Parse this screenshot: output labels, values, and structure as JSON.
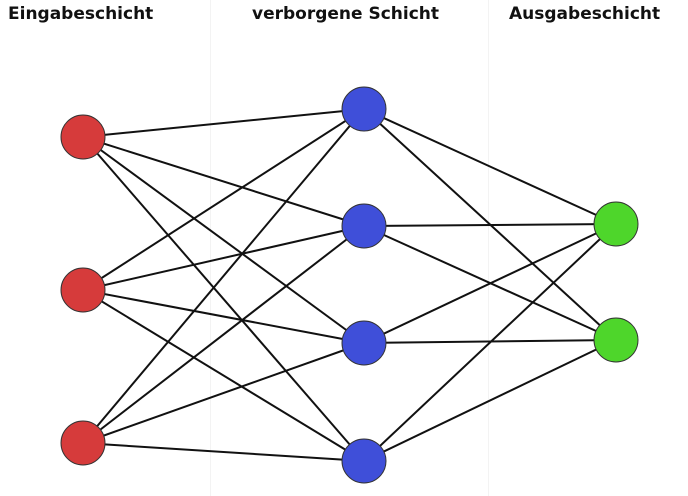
{
  "layers": [
    {
      "id": "input",
      "title": "Eingabeschicht",
      "color": "#d63b3b",
      "nodes": 3
    },
    {
      "id": "hidden",
      "title": "verborgene Schicht",
      "color": "#3f4fd9",
      "nodes": 4
    },
    {
      "id": "output",
      "title": "Ausgabeschicht",
      "color": "#4ed62b",
      "nodes": 2
    }
  ],
  "edge_color": "#111111",
  "node_stroke": "#333333"
}
